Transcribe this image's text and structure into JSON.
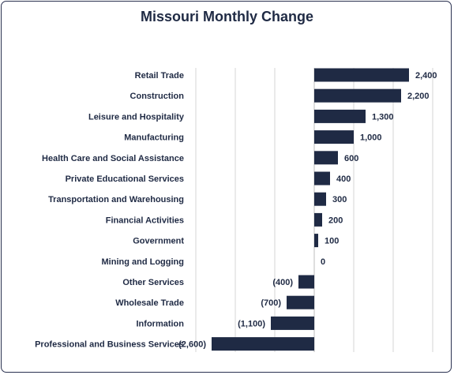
{
  "chart_data": {
    "type": "bar",
    "orientation": "horizontal",
    "title": "Missouri Monthly Change",
    "categories": [
      "Retail Trade",
      "Construction",
      "Leisure and Hospitality",
      "Manufacturing",
      "Health Care and Social Assistance",
      "Private Educational Services",
      "Transportation and Warehousing",
      "Financial Activities",
      "Government",
      "Mining and Logging",
      "Other Services",
      "Wholesale Trade",
      "Information",
      "Professional and Business Services"
    ],
    "values": [
      2400,
      2200,
      1300,
      1000,
      600,
      400,
      300,
      200,
      100,
      0,
      -400,
      -700,
      -1100,
      -2600
    ],
    "value_labels": [
      "2,400",
      "2,200",
      "1,300",
      "1,000",
      "600",
      "400",
      "300",
      "200",
      "100",
      "0",
      "(400)",
      "(700)",
      "(1,100)",
      "(2,600)"
    ],
    "xlim": [
      -3000,
      3000
    ],
    "grid": true,
    "xlabel": "",
    "ylabel": "",
    "colors": {
      "bar": "#1f2a44",
      "grid": "#d4d4d4",
      "text": "#1f2a44"
    }
  }
}
